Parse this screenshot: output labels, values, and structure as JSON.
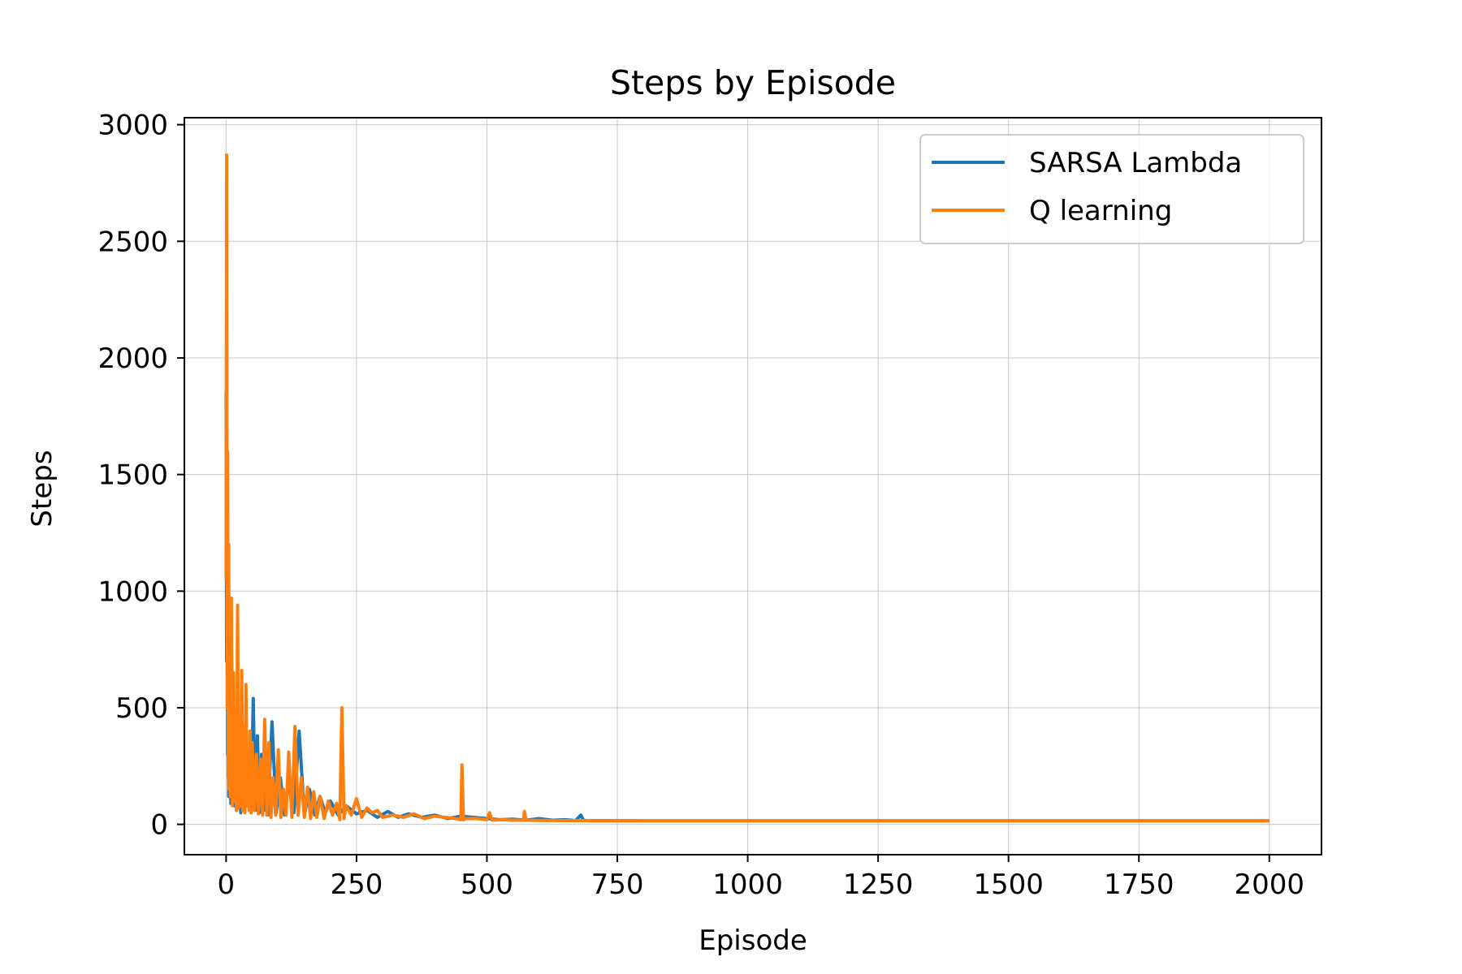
{
  "chart_data": {
    "type": "line",
    "title": "Steps by Episode",
    "xlabel": "Episode",
    "ylabel": "Steps",
    "xlim": [
      -80,
      2100
    ],
    "ylim": [
      -130,
      3030
    ],
    "xticks": [
      0,
      250,
      500,
      750,
      1000,
      1250,
      1500,
      1750,
      2000
    ],
    "xtick_labels": [
      "0",
      "250",
      "500",
      "750",
      "1000",
      "1250",
      "1500",
      "1750",
      "2000"
    ],
    "yticks": [
      0,
      500,
      1000,
      1500,
      2000,
      2500,
      3000
    ],
    "ytick_labels": [
      "0",
      "500",
      "1000",
      "1500",
      "2000",
      "2500",
      "3000"
    ],
    "grid": true,
    "legend_position": "top-right",
    "series": [
      {
        "name": "SARSA Lambda",
        "color": "#1f77b4",
        "x": [
          0,
          1,
          2,
          3,
          4,
          5,
          6,
          7,
          8,
          9,
          10,
          12,
          14,
          16,
          18,
          20,
          22,
          24,
          26,
          28,
          30,
          32,
          34,
          36,
          38,
          40,
          44,
          48,
          52,
          56,
          60,
          64,
          68,
          72,
          76,
          80,
          88,
          96,
          104,
          112,
          120,
          130,
          140,
          150,
          160,
          170,
          180,
          190,
          200,
          215,
          230,
          250,
          270,
          290,
          310,
          330,
          350,
          375,
          400,
          425,
          450,
          475,
          500,
          525,
          550,
          575,
          600,
          625,
          650,
          670,
          680,
          685,
          690,
          700,
          720,
          750,
          800,
          900,
          1000,
          1250,
          1500,
          1750,
          2000
        ],
        "y": [
          1850,
          700,
          1130,
          300,
          900,
          120,
          600,
          200,
          450,
          90,
          880,
          120,
          580,
          80,
          420,
          60,
          300,
          110,
          250,
          50,
          480,
          70,
          350,
          60,
          260,
          90,
          200,
          70,
          540,
          60,
          380,
          50,
          300,
          60,
          250,
          40,
          440,
          50,
          200,
          40,
          180,
          50,
          400,
          40,
          150,
          40,
          120,
          50,
          100,
          40,
          80,
          45,
          60,
          30,
          55,
          30,
          45,
          30,
          40,
          25,
          35,
          30,
          25,
          20,
          22,
          18,
          25,
          18,
          20,
          16,
          40,
          18,
          16,
          15,
          15,
          15,
          15,
          15,
          15,
          15,
          15,
          15,
          15
        ]
      },
      {
        "name": "Q learning",
        "color": "#ff7f0e",
        "x": [
          0,
          1,
          2,
          3,
          4,
          5,
          6,
          7,
          8,
          9,
          10,
          12,
          14,
          16,
          18,
          20,
          22,
          24,
          26,
          28,
          30,
          32,
          34,
          36,
          38,
          40,
          42,
          44,
          46,
          48,
          50,
          54,
          58,
          62,
          66,
          70,
          74,
          78,
          82,
          86,
          90,
          95,
          100,
          105,
          110,
          115,
          120,
          126,
          132,
          138,
          144,
          150,
          156,
          162,
          168,
          174,
          180,
          188,
          196,
          204,
          212,
          218,
          222,
          226,
          230,
          240,
          250,
          260,
          270,
          280,
          290,
          300,
          320,
          340,
          360,
          380,
          400,
          420,
          440,
          450,
          452,
          455,
          460,
          480,
          500,
          505,
          510,
          530,
          550,
          570,
          572,
          575,
          600,
          640,
          700,
          740,
          750,
          800,
          900,
          1000,
          1250,
          1500,
          1750,
          2000
        ],
        "y": [
          1050,
          2870,
          500,
          1600,
          200,
          1200,
          150,
          700,
          120,
          600,
          970,
          80,
          650,
          100,
          200,
          60,
          940,
          70,
          300,
          80,
          660,
          60,
          420,
          50,
          600,
          80,
          300,
          60,
          400,
          50,
          350,
          60,
          300,
          45,
          280,
          40,
          450,
          40,
          350,
          30,
          200,
          40,
          320,
          30,
          150,
          40,
          310,
          30,
          420,
          40,
          200,
          30,
          160,
          25,
          140,
          30,
          120,
          25,
          100,
          40,
          90,
          20,
          500,
          25,
          80,
          40,
          110,
          30,
          70,
          50,
          60,
          30,
          40,
          30,
          45,
          25,
          35,
          30,
          25,
          20,
          255,
          20,
          25,
          25,
          20,
          50,
          18,
          20,
          18,
          18,
          55,
          18,
          17,
          16,
          16,
          16,
          16,
          15,
          15,
          15,
          15,
          15,
          15,
          15
        ]
      }
    ]
  }
}
